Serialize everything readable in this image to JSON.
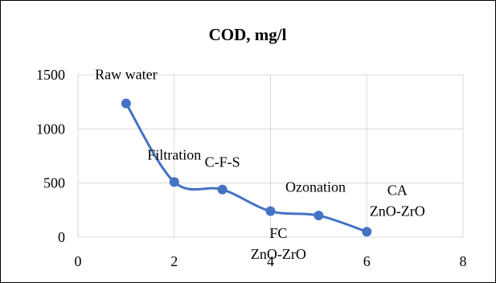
{
  "chart_data": {
    "type": "scatter",
    "title": "COD, mg/l",
    "xlabel": "",
    "ylabel": "",
    "xlim": [
      0,
      8
    ],
    "ylim": [
      0,
      1500
    ],
    "x_ticks": [
      0,
      2,
      4,
      6,
      8
    ],
    "y_ticks": [
      0,
      500,
      1000,
      1500
    ],
    "grid": {
      "horizontal": true,
      "vertical": true
    },
    "line": "smooth",
    "series": [
      {
        "color": "#4472c4",
        "points": [
          {
            "x": 1,
            "y": 1235,
            "label": "Raw water"
          },
          {
            "x": 2,
            "y": 510,
            "label": "Filtration"
          },
          {
            "x": 3,
            "y": 440,
            "label": "C-F-S"
          },
          {
            "x": 4,
            "y": 240,
            "label": "Ozonation"
          },
          {
            "x": 5,
            "y": 200,
            "label": "FC ZnO-ZrO"
          },
          {
            "x": 6,
            "y": 50,
            "label": "CA ZnO-ZrO"
          }
        ]
      }
    ]
  }
}
